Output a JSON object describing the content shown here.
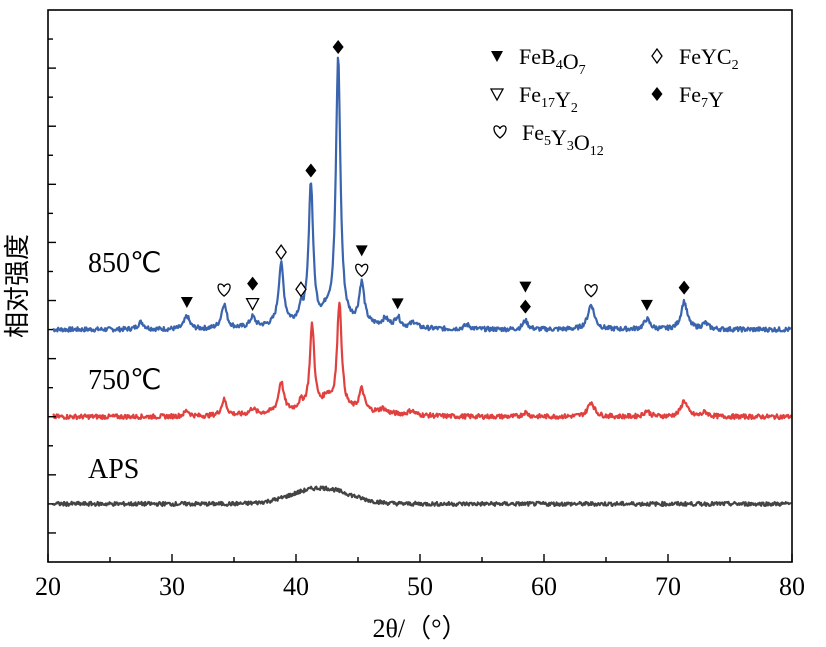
{
  "chart_data": {
    "type": "line",
    "xlabel": "2θ/（°）",
    "ylabel": "相对强度",
    "xlim": [
      20,
      80
    ],
    "xticks": [
      20,
      30,
      40,
      50,
      60,
      70,
      80
    ],
    "series": [
      {
        "name": "850℃",
        "color": "#3a64ad",
        "baseline": 8.0,
        "noise": 0.08,
        "peaks": [
          {
            "x": 27.5,
            "h": 0.25,
            "w": 0.3
          },
          {
            "x": 31.2,
            "h": 0.45,
            "w": 0.25
          },
          {
            "x": 34.2,
            "h": 0.85,
            "w": 0.25
          },
          {
            "x": 36.5,
            "h": 0.35,
            "w": 0.25
          },
          {
            "x": 38.8,
            "h": 2.1,
            "w": 0.25
          },
          {
            "x": 40.4,
            "h": 0.45,
            "w": 0.25
          },
          {
            "x": 41.2,
            "h": 4.8,
            "w": 0.22
          },
          {
            "x": 42.5,
            "h": 0.35,
            "w": 0.4
          },
          {
            "x": 43.4,
            "h": 9.1,
            "w": 0.22
          },
          {
            "x": 45.3,
            "h": 1.4,
            "w": 0.25
          },
          {
            "x": 47.2,
            "h": 0.25,
            "w": 0.3
          },
          {
            "x": 48.2,
            "h": 0.35,
            "w": 0.25
          },
          {
            "x": 49.5,
            "h": 0.2,
            "w": 0.3
          },
          {
            "x": 53.8,
            "h": 0.15,
            "w": 0.3
          },
          {
            "x": 58.5,
            "h": 0.3,
            "w": 0.25
          },
          {
            "x": 63.8,
            "h": 0.85,
            "w": 0.32
          },
          {
            "x": 68.3,
            "h": 0.35,
            "w": 0.28
          },
          {
            "x": 71.3,
            "h": 0.95,
            "w": 0.3
          },
          {
            "x": 73.0,
            "h": 0.2,
            "w": 0.3
          }
        ],
        "hump": {
          "x": 42.5,
          "h": 0.15,
          "w": 6
        }
      },
      {
        "name": "750℃",
        "color": "#e0403e",
        "baseline": 5.0,
        "noise": 0.08,
        "peaks": [
          {
            "x": 31.2,
            "h": 0.2,
            "w": 0.25
          },
          {
            "x": 34.2,
            "h": 0.55,
            "w": 0.25
          },
          {
            "x": 36.5,
            "h": 0.2,
            "w": 0.25
          },
          {
            "x": 38.8,
            "h": 1.05,
            "w": 0.25
          },
          {
            "x": 40.4,
            "h": 0.25,
            "w": 0.25
          },
          {
            "x": 41.3,
            "h": 2.9,
            "w": 0.22
          },
          {
            "x": 42.5,
            "h": 0.4,
            "w": 0.4
          },
          {
            "x": 43.5,
            "h": 3.7,
            "w": 0.22
          },
          {
            "x": 45.3,
            "h": 0.75,
            "w": 0.25
          },
          {
            "x": 47.0,
            "h": 0.15,
            "w": 0.3
          },
          {
            "x": 49.3,
            "h": 0.15,
            "w": 0.3
          },
          {
            "x": 58.5,
            "h": 0.15,
            "w": 0.25
          },
          {
            "x": 63.8,
            "h": 0.5,
            "w": 0.32
          },
          {
            "x": 68.3,
            "h": 0.2,
            "w": 0.28
          },
          {
            "x": 71.3,
            "h": 0.55,
            "w": 0.3
          },
          {
            "x": 73.0,
            "h": 0.15,
            "w": 0.3
          }
        ],
        "hump": {
          "x": 42.5,
          "h": 0.2,
          "w": 6
        }
      },
      {
        "name": "APS",
        "color": "#444444",
        "baseline": 2.0,
        "noise": 0.07,
        "peaks": [],
        "hump": {
          "x": 42.0,
          "h": 0.55,
          "w": 3.2
        }
      }
    ],
    "legend": [
      {
        "symbol": "filled-down-triangle",
        "label": "FeB",
        "subs": [
          "4",
          "7"
        ],
        "parts": [
          "FeB",
          "O"
        ]
      },
      {
        "symbol": "open-diamond",
        "label": "FeYC",
        "subs": [
          "2"
        ],
        "parts": [
          "FeYC"
        ]
      },
      {
        "symbol": "open-down-triangle",
        "label": "Fe",
        "subs": [
          "17",
          "2"
        ],
        "parts": [
          "Fe",
          "Y"
        ]
      },
      {
        "symbol": "filled-diamond",
        "label": "Fe",
        "subs": [
          "7"
        ],
        "parts": [
          "Fe",
          "Y"
        ]
      },
      {
        "symbol": "open-heart",
        "label": "Fe",
        "subs": [
          "5",
          "3",
          "12"
        ],
        "parts": [
          "Fe",
          "Y",
          "O"
        ]
      }
    ],
    "markers": [
      {
        "x": 31.2,
        "symbol": "filled-down-triangle"
      },
      {
        "x": 34.2,
        "symbol": "open-heart"
      },
      {
        "x": 36.5,
        "symbol": "open-down-triangle"
      },
      {
        "x": 36.5,
        "symbol": "filled-diamond"
      },
      {
        "x": 38.8,
        "symbol": "open-diamond"
      },
      {
        "x": 40.4,
        "symbol": "open-diamond"
      },
      {
        "x": 41.2,
        "symbol": "filled-diamond"
      },
      {
        "x": 43.4,
        "symbol": "filled-diamond"
      },
      {
        "x": 45.3,
        "symbol": "open-heart"
      },
      {
        "x": 45.3,
        "symbol": "filled-down-triangle"
      },
      {
        "x": 48.2,
        "symbol": "filled-down-triangle"
      },
      {
        "x": 58.5,
        "symbol": "filled-diamond"
      },
      {
        "x": 58.5,
        "symbol": "filled-down-triangle"
      },
      {
        "x": 63.8,
        "symbol": "open-heart"
      },
      {
        "x": 68.3,
        "symbol": "filled-down-triangle"
      },
      {
        "x": 71.3,
        "symbol": "filled-diamond"
      }
    ]
  }
}
